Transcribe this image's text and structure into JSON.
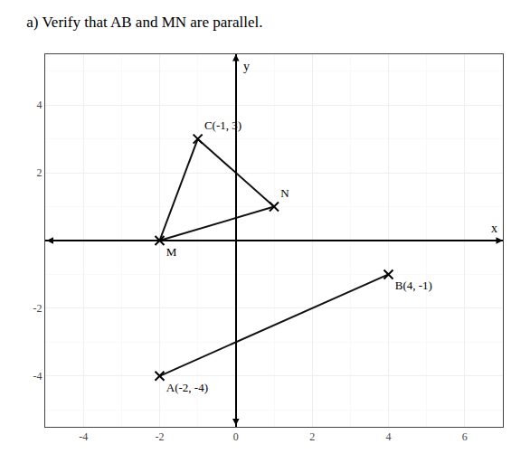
{
  "chart_data": {
    "type": "scatter",
    "title": "a) Verify that AB and MN are parallel.",
    "xlabel": "x",
    "ylabel": "y",
    "series": [
      {
        "type": "line",
        "color": "#111111",
        "x": [
          -2,
          4
        ],
        "values": [
          -4,
          -1
        ]
      },
      {
        "type": "line",
        "color": "#111111",
        "x": [
          -2,
          1
        ],
        "values": [
          0,
          1
        ]
      },
      {
        "type": "line",
        "color": "#111111",
        "x": [
          -1,
          1
        ],
        "values": [
          3,
          1
        ]
      },
      {
        "type": "line",
        "color": "#111111",
        "x": [
          -1,
          -2
        ],
        "values": [
          3,
          0
        ]
      },
      {
        "type": "scatter",
        "marker": "x",
        "color": "#000000",
        "x": [
          -2,
          4,
          -2,
          1,
          -1
        ],
        "values": [
          -4,
          -1,
          0,
          1,
          3
        ],
        "value_labels": [
          "A(-2, -4)",
          "B(4, -1)",
          "M",
          "N",
          "C(-1, 3)"
        ]
      }
    ],
    "xlim": [
      -5,
      7
    ],
    "ylim": [
      -5.5,
      5.5
    ],
    "xticks": [
      -4,
      -2,
      0,
      2,
      4,
      6
    ],
    "yticks": [
      -4,
      -2,
      2,
      4
    ],
    "grid": true,
    "data_labels": true
  }
}
